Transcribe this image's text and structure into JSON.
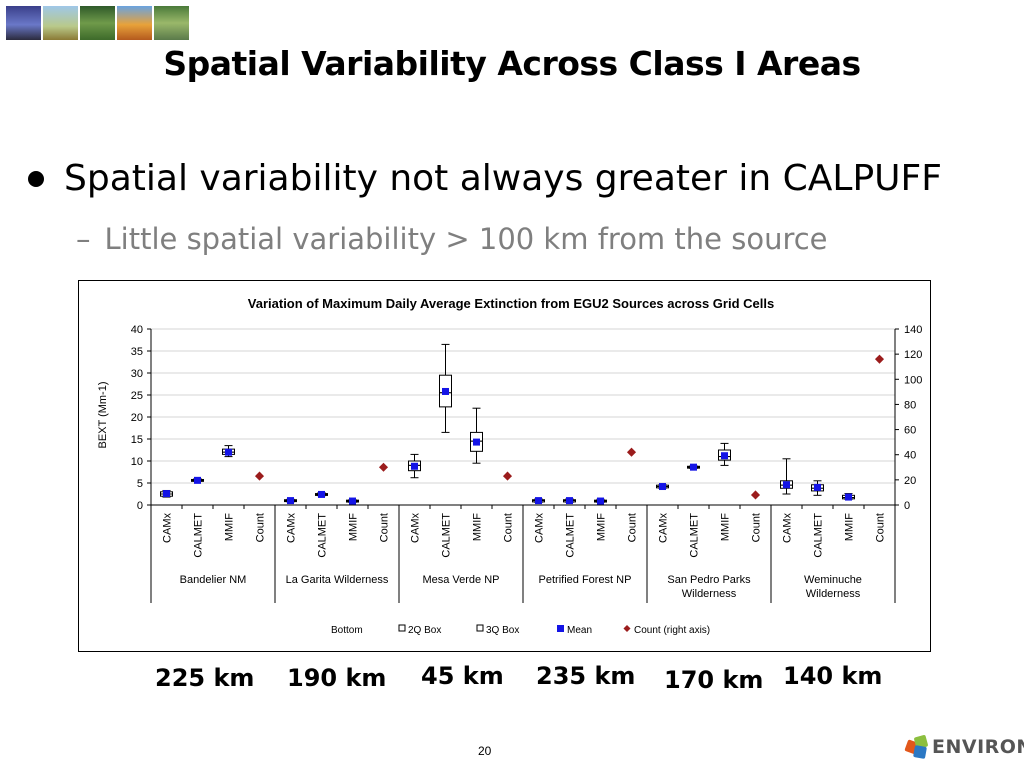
{
  "slide": {
    "title": "Spatial Variability Across Class I Areas",
    "bullet": "Spatial variability not always greater in CALPUFF",
    "sub_bullet": "Little spatial variability > 100 km from the source",
    "page_number": "20",
    "logo_text": "ENVIRON",
    "distances": [
      "225 km",
      "190 km",
      "45 km",
      "235 km",
      "170 km",
      "140 km"
    ]
  },
  "thumbnails": [
    "wind-turbine-image",
    "grassland-image",
    "forest-path-image",
    "autumn-field-image",
    "wetland-image"
  ],
  "chart_data": {
    "type": "box",
    "title": "Variation of Maximum Daily Average Extinction from EGU2 Sources across Grid Cells",
    "ylabel": "BEXT (Mm-1)",
    "ylim": [
      0,
      40
    ],
    "yticks": [
      0,
      5,
      10,
      15,
      20,
      25,
      30,
      35,
      40
    ],
    "y2lim": [
      0,
      140
    ],
    "y2ticks": [
      0,
      20,
      40,
      60,
      80,
      100,
      120,
      140
    ],
    "grid": true,
    "legend": [
      "Bottom",
      "2Q Box",
      "3Q Box",
      "Mean",
      "Count (right axis)"
    ],
    "legend_position": "bottom",
    "colors": {
      "mean": "#1414e6",
      "count": "#9b1c1c",
      "box": "#ffffff",
      "axis": "#000000"
    },
    "groups": [
      {
        "name": "Bandelier NM",
        "models": [
          {
            "label": "CAMx",
            "min": 1.8,
            "q1": 2.0,
            "median": 2.5,
            "q3": 3.0,
            "max": 3.3,
            "mean": 2.6
          },
          {
            "label": "CALMET",
            "min": 5.4,
            "q1": 5.4,
            "median": 5.6,
            "q3": 5.8,
            "max": 6.0,
            "mean": 5.6
          },
          {
            "label": "MMIF",
            "min": 11.0,
            "q1": 11.5,
            "median": 12.0,
            "q3": 12.7,
            "max": 13.5,
            "mean": 12.0
          },
          {
            "label": "Count",
            "count": 23
          }
        ]
      },
      {
        "name": "La Garita Wilderness",
        "models": [
          {
            "label": "CAMx",
            "min": 0.7,
            "q1": 0.8,
            "median": 1.0,
            "q3": 1.2,
            "max": 1.3,
            "mean": 1.0
          },
          {
            "label": "CALMET",
            "min": 2.1,
            "q1": 2.2,
            "median": 2.4,
            "q3": 2.6,
            "max": 2.8,
            "mean": 2.4
          },
          {
            "label": "MMIF",
            "min": 0.6,
            "q1": 0.7,
            "median": 0.9,
            "q3": 1.1,
            "max": 1.2,
            "mean": 0.9
          },
          {
            "label": "Count",
            "count": 30
          }
        ]
      },
      {
        "name": "Mesa Verde NP",
        "models": [
          {
            "label": "CAMx",
            "min": 6.2,
            "q1": 7.8,
            "median": 9.0,
            "q3": 10.0,
            "max": 11.5,
            "mean": 8.8
          },
          {
            "label": "CALMET",
            "min": 16.5,
            "q1": 22.3,
            "median": 25.5,
            "q3": 29.5,
            "max": 36.5,
            "mean": 25.8
          },
          {
            "label": "MMIF",
            "min": 9.5,
            "q1": 12.2,
            "median": 14.5,
            "q3": 16.5,
            "max": 22.0,
            "mean": 14.3
          },
          {
            "label": "Count",
            "count": 23
          }
        ]
      },
      {
        "name": "Petrified Forest NP",
        "models": [
          {
            "label": "CAMx",
            "min": 0.6,
            "q1": 0.7,
            "median": 1.0,
            "q3": 1.2,
            "max": 1.4,
            "mean": 1.0
          },
          {
            "label": "CALMET",
            "min": 0.6,
            "q1": 0.7,
            "median": 1.0,
            "q3": 1.2,
            "max": 1.4,
            "mean": 1.0
          },
          {
            "label": "MMIF",
            "min": 0.6,
            "q1": 0.7,
            "median": 0.9,
            "q3": 1.1,
            "max": 1.3,
            "mean": 0.9
          },
          {
            "label": "Count",
            "count": 42
          }
        ]
      },
      {
        "name": "San Pedro Parks Wilderness",
        "models": [
          {
            "label": "CAMx",
            "min": 3.8,
            "q1": 3.9,
            "median": 4.2,
            "q3": 4.5,
            "max": 4.6,
            "mean": 4.2
          },
          {
            "label": "CALMET",
            "min": 8.3,
            "q1": 8.4,
            "median": 8.6,
            "q3": 8.8,
            "max": 8.9,
            "mean": 8.6
          },
          {
            "label": "MMIF",
            "min": 9.0,
            "q1": 10.2,
            "median": 11.0,
            "q3": 12.5,
            "max": 14.0,
            "mean": 11.2
          },
          {
            "label": "Count",
            "count": 8
          }
        ]
      },
      {
        "name": "Weminuche Wilderness",
        "models": [
          {
            "label": "CAMx",
            "min": 2.5,
            "q1": 3.8,
            "median": 4.5,
            "q3": 5.5,
            "max": 10.5,
            "mean": 4.6
          },
          {
            "label": "CALMET",
            "min": 2.2,
            "q1": 3.2,
            "median": 3.8,
            "q3": 4.6,
            "max": 5.5,
            "mean": 4.0
          },
          {
            "label": "MMIF",
            "min": 1.3,
            "q1": 1.4,
            "median": 1.7,
            "q3": 2.2,
            "max": 2.6,
            "mean": 1.8
          },
          {
            "label": "Count",
            "count": 116
          }
        ]
      }
    ]
  }
}
